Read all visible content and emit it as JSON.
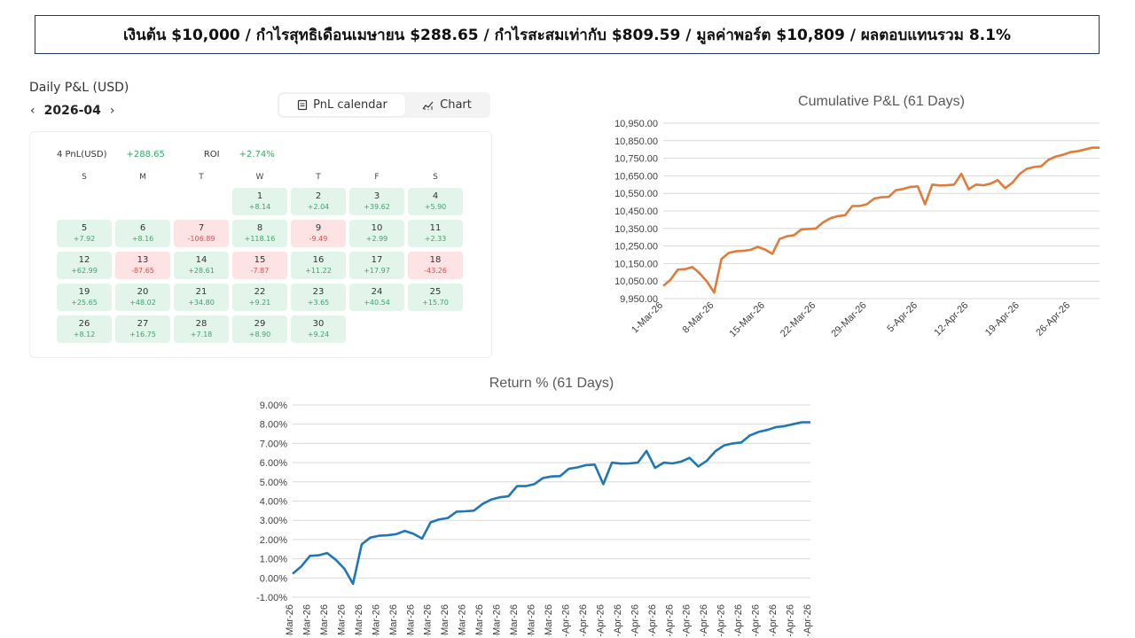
{
  "banner": "เงินต้น $10,000  /  กำไรสุทธิเดือนเมษายน $288.65  /  กำไรสะสมเท่ากับ $809.59  /  มูลค่าพอร์ต $10,809 / ผลตอบแทนรวม 8.1%",
  "pnl_panel": {
    "title": "Daily P&L (USD)",
    "month": "2026-04",
    "prev_icon": "chevron-left-icon",
    "next_icon": "chevron-right-icon",
    "tabs": [
      {
        "label": "PnL calendar",
        "icon": "calendar-icon",
        "active": true
      },
      {
        "label": "Chart",
        "icon": "chart-icon",
        "active": false
      }
    ],
    "summary": {
      "pnl_label": "4 PnL(USD)",
      "pnl_value": "+288.65",
      "roi_label": "ROI",
      "roi_value": "+2.74%"
    },
    "weekdays": [
      "S",
      "M",
      "T",
      "W",
      "T",
      "F",
      "S"
    ],
    "days": [
      {
        "day": "1",
        "value": "+8.14"
      },
      {
        "day": "2",
        "value": "+2.04"
      },
      {
        "day": "3",
        "value": "+39.62"
      },
      {
        "day": "4",
        "value": "+5.90"
      },
      {
        "day": "5",
        "value": "+7.92"
      },
      {
        "day": "6",
        "value": "+8.16"
      },
      {
        "day": "7",
        "value": "-106.89"
      },
      {
        "day": "8",
        "value": "+118.16"
      },
      {
        "day": "9",
        "value": "-9.49"
      },
      {
        "day": "10",
        "value": "+2.99"
      },
      {
        "day": "11",
        "value": "+2.33"
      },
      {
        "day": "12",
        "value": "+62.99"
      },
      {
        "day": "13",
        "value": "-87.65"
      },
      {
        "day": "14",
        "value": "+28.61"
      },
      {
        "day": "15",
        "value": "-7.87"
      },
      {
        "day": "16",
        "value": "+11.22"
      },
      {
        "day": "17",
        "value": "+17.97"
      },
      {
        "day": "18",
        "value": "-43.26"
      },
      {
        "day": "19",
        "value": "+25.65"
      },
      {
        "day": "20",
        "value": "+48.02"
      },
      {
        "day": "21",
        "value": "+34.80"
      },
      {
        "day": "22",
        "value": "+9.21"
      },
      {
        "day": "23",
        "value": "+3.65"
      },
      {
        "day": "24",
        "value": "+40.54"
      },
      {
        "day": "25",
        "value": "+15.70"
      },
      {
        "day": "26",
        "value": "+8.12"
      },
      {
        "day": "27",
        "value": "+16.75"
      },
      {
        "day": "28",
        "value": "+7.18"
      },
      {
        "day": "29",
        "value": "+8.90"
      },
      {
        "day": "30",
        "value": "+9.24"
      }
    ],
    "colors": {
      "positive": "#3aa66a",
      "negative": "#d9534f",
      "positive_bg": "#e3f4ea",
      "negative_bg": "#fde3e3"
    }
  },
  "chart_data": [
    {
      "type": "line",
      "title": "Cumulative P&L (61 Days)",
      "color": "#e07b39",
      "ylim": [
        9950,
        10950
      ],
      "yticks": [
        "9,950.00",
        "10,050.00",
        "10,150.00",
        "10,250.00",
        "10,350.00",
        "10,450.00",
        "10,550.00",
        "10,650.00",
        "10,750.00",
        "10,850.00",
        "10,950.00"
      ],
      "ytick_values": [
        9950,
        10050,
        10150,
        10250,
        10350,
        10450,
        10550,
        10650,
        10750,
        10850,
        10950
      ],
      "xtick_labels": [
        "1-Mar-26",
        "8-Mar-26",
        "15-Mar-26",
        "22-Mar-26",
        "29-Mar-26",
        "5-Apr-26",
        "12-Apr-26",
        "19-Apr-26",
        "26-Apr-26"
      ],
      "xtick_days": [
        1,
        8,
        15,
        22,
        29,
        36,
        43,
        50,
        57
      ],
      "x": [
        1,
        2,
        3,
        4,
        5,
        6,
        7,
        8,
        9,
        10,
        11,
        12,
        13,
        14,
        15,
        16,
        17,
        18,
        19,
        20,
        21,
        22,
        23,
        24,
        25,
        26,
        27,
        28,
        29,
        30,
        31,
        32,
        33,
        34,
        35,
        36,
        37,
        38,
        39,
        40,
        41,
        42,
        43,
        44,
        45,
        46,
        47,
        48,
        49,
        50,
        51,
        52,
        53,
        54,
        55,
        56,
        57,
        58,
        59,
        60,
        61
      ],
      "values": [
        10022,
        10058,
        10115,
        10118,
        10130,
        10095,
        10048,
        9985,
        10175,
        10210,
        10220,
        10222,
        10228,
        10245,
        10230,
        10205,
        10290,
        10305,
        10312,
        10345,
        10347,
        10350,
        10385,
        10408,
        10420,
        10425,
        10478,
        10478,
        10488,
        10520,
        10528,
        10530,
        10568,
        10575,
        10587,
        10590,
        10488,
        10600,
        10595,
        10596,
        10600,
        10661,
        10573,
        10600,
        10596,
        10605,
        10625,
        10580,
        10610,
        10660,
        10690,
        10700,
        10705,
        10742,
        10760,
        10770,
        10785,
        10790,
        10800,
        10810,
        10810
      ]
    },
    {
      "type": "line",
      "title": "Return %  (61 Days)",
      "color": "#1f77b4",
      "ylim": [
        -1,
        9
      ],
      "yticks": [
        "-1.00%",
        "0.00%",
        "1.00%",
        "2.00%",
        "3.00%",
        "4.00%",
        "5.00%",
        "6.00%",
        "7.00%",
        "8.00%",
        "9.00%"
      ],
      "ytick_values": [
        -1,
        0,
        1,
        2,
        3,
        4,
        5,
        6,
        7,
        8,
        9
      ],
      "xtick_labels": [
        "1-Mar-26",
        "3-Mar-26",
        "5-Mar-26",
        "7-Mar-26",
        "9-Mar-26",
        "11-Mar-26",
        "13-Mar-26",
        "15-Mar-26",
        "17-Mar-26",
        "19-Mar-26",
        "21-Mar-26",
        "23-Mar-26",
        "25-Mar-26",
        "27-Mar-26",
        "29-Mar-26",
        "31-Mar-26",
        "2-Apr-26",
        "4-Apr-26",
        "6-Apr-26",
        "8-Apr-26",
        "10-Apr-26",
        "12-Apr-26",
        "14-Apr-26",
        "16-Apr-26",
        "18-Apr-26",
        "20-Apr-26",
        "22-Apr-26",
        "24-Apr-26",
        "26-Apr-26",
        "28-Apr-26",
        "30-Apr-26"
      ],
      "xtick_days": [
        1,
        3,
        5,
        7,
        9,
        11,
        13,
        15,
        17,
        19,
        21,
        23,
        25,
        27,
        29,
        31,
        33,
        35,
        37,
        39,
        41,
        43,
        45,
        47,
        49,
        51,
        53,
        55,
        57,
        59,
        61
      ],
      "x": [
        1,
        2,
        3,
        4,
        5,
        6,
        7,
        8,
        9,
        10,
        11,
        12,
        13,
        14,
        15,
        16,
        17,
        18,
        19,
        20,
        21,
        22,
        23,
        24,
        25,
        26,
        27,
        28,
        29,
        30,
        31,
        32,
        33,
        34,
        35,
        36,
        37,
        38,
        39,
        40,
        41,
        42,
        43,
        44,
        45,
        46,
        47,
        48,
        49,
        50,
        51,
        52,
        53,
        54,
        55,
        56,
        57,
        58,
        59,
        60,
        61
      ],
      "values": [
        0.22,
        0.6,
        1.15,
        1.18,
        1.3,
        0.95,
        0.48,
        -0.3,
        1.75,
        2.1,
        2.2,
        2.22,
        2.28,
        2.45,
        2.3,
        2.05,
        2.9,
        3.05,
        3.12,
        3.45,
        3.47,
        3.5,
        3.85,
        4.08,
        4.2,
        4.25,
        4.78,
        4.78,
        4.88,
        5.2,
        5.28,
        5.3,
        5.68,
        5.75,
        5.87,
        5.9,
        4.88,
        6.0,
        5.95,
        5.96,
        6.0,
        6.61,
        5.73,
        6.0,
        5.96,
        6.05,
        6.25,
        5.8,
        6.1,
        6.6,
        6.9,
        7.0,
        7.05,
        7.42,
        7.6,
        7.7,
        7.85,
        7.9,
        8.0,
        8.1,
        8.1
      ]
    }
  ]
}
